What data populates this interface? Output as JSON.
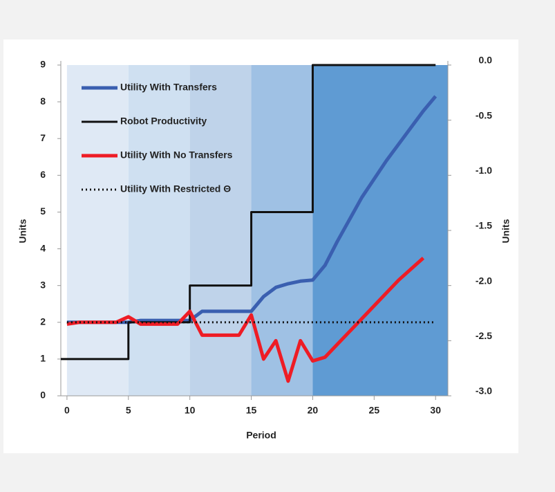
{
  "chart_data": {
    "type": "line",
    "x_label": "Period",
    "y_label": "Units",
    "y2_label": "Units",
    "xlim": [
      -0.5,
      31
    ],
    "xticks": [
      0,
      5,
      10,
      15,
      20,
      25,
      30
    ],
    "ylim": [
      0,
      9
    ],
    "yticks": [
      0,
      1,
      2,
      3,
      4,
      5,
      6,
      7,
      8,
      9
    ],
    "y2lim": [
      -3,
      0
    ],
    "y2ticks": [
      {
        "value": -3,
        "label": "-3.0"
      },
      -2.5,
      {
        "value": -2,
        "label": "-2.0"
      },
      -1.5,
      {
        "value": -1,
        "label": "-1.0"
      },
      -0.5,
      {
        "value": 0,
        "label": "0.0"
      }
    ],
    "shaded_periods": [
      {
        "start": 0,
        "end": 5,
        "color": "#dfe9f5"
      },
      {
        "start": 5,
        "end": 10,
        "color": "#cfe0f1"
      },
      {
        "start": 10,
        "end": 15,
        "color": "#bfd3ea"
      },
      {
        "start": 15,
        "end": 20,
        "color": "#9fc1e4"
      },
      {
        "start": 20,
        "end": 31,
        "color": "#5f9bd3"
      }
    ],
    "legend": "upper left",
    "series": [
      {
        "name": "Utility With Transfers",
        "color": "#3a5fb0",
        "width": 5,
        "dash": null,
        "x": [
          0,
          1,
          2,
          3,
          4,
          5,
          6,
          7,
          8,
          9,
          10,
          11,
          12,
          13,
          14,
          15,
          16,
          17,
          18,
          19,
          20,
          21,
          22,
          23,
          24,
          25,
          26,
          27,
          28,
          29,
          30
        ],
        "values": [
          2.0,
          2.0,
          2.0,
          2.0,
          2.0,
          2.0,
          2.05,
          2.05,
          2.05,
          2.05,
          2.05,
          2.3,
          2.3,
          2.3,
          2.3,
          2.3,
          2.7,
          2.95,
          3.05,
          3.12,
          3.15,
          3.55,
          4.2,
          4.8,
          5.4,
          5.9,
          6.4,
          6.85,
          7.3,
          7.75,
          8.15
        ]
      },
      {
        "name": "Robot Productivity",
        "color": "#111111",
        "width": 3,
        "dash": null,
        "x": [
          -0.5,
          5,
          5,
          10,
          10,
          15,
          15,
          20,
          20,
          30
        ],
        "values": [
          1,
          1,
          2,
          2,
          3,
          3,
          5,
          5,
          9,
          9
        ]
      },
      {
        "name": "Utility With No Transfers",
        "color": "#ee1c25",
        "width": 5,
        "dash": null,
        "x": [
          0,
          1,
          2,
          3,
          4,
          5,
          6,
          7,
          8,
          9,
          10,
          11,
          12,
          13,
          14,
          15,
          16,
          17,
          18,
          19,
          20,
          21,
          22,
          23,
          24,
          25,
          26,
          27,
          28,
          29
        ],
        "values": [
          1.95,
          2.0,
          2.0,
          2.0,
          2.0,
          2.15,
          1.95,
          1.95,
          1.95,
          1.95,
          2.3,
          1.65,
          1.65,
          1.65,
          1.65,
          2.2,
          1.0,
          1.5,
          0.4,
          1.5,
          0.95,
          1.05,
          1.4,
          1.75,
          2.1,
          2.45,
          2.8,
          3.15,
          3.45,
          3.75
        ]
      },
      {
        "name": "Utility With Restricted Θ",
        "color": "#111111",
        "width": 3,
        "dash": "2 4",
        "x": [
          0,
          30
        ],
        "values": [
          2,
          2
        ]
      }
    ]
  }
}
